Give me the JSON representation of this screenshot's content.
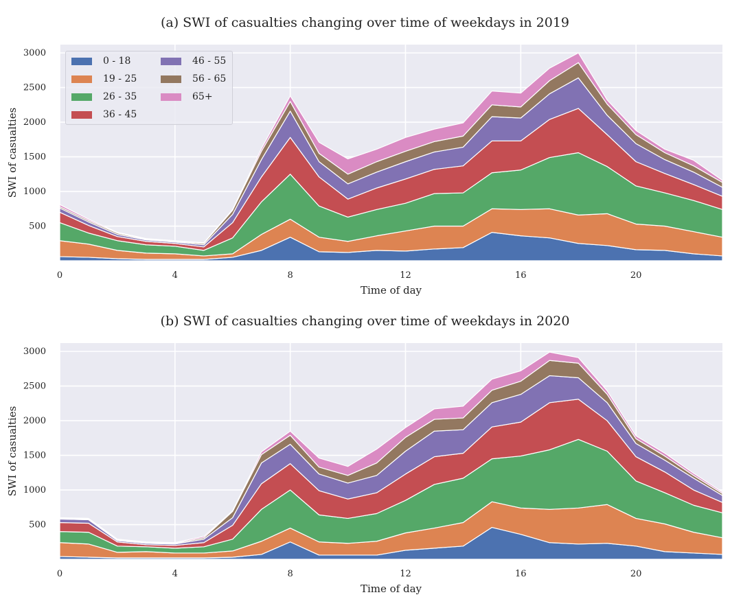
{
  "chart_data": [
    {
      "type": "area",
      "stacked": true,
      "title": "(a) SWI of casualties changing over time of weekdays in 2019",
      "xlabel": "Time of day",
      "ylabel": "SWI of casualties",
      "xlim": [
        0,
        23
      ],
      "ylim": [
        0,
        3120
      ],
      "xticks": [
        0,
        4,
        8,
        12,
        16,
        20
      ],
      "yticks": [
        500,
        1000,
        1500,
        2000,
        2500,
        3000
      ],
      "grid": true,
      "legend": "top-left",
      "x": [
        0,
        1,
        2,
        3,
        4,
        5,
        6,
        7,
        8,
        9,
        10,
        11,
        12,
        13,
        14,
        15,
        16,
        17,
        18,
        19,
        20,
        21,
        22,
        23
      ],
      "series": [
        {
          "name": "0 - 18",
          "color": "#4c72b0",
          "values": [
            60,
            50,
            30,
            20,
            20,
            20,
            50,
            150,
            340,
            130,
            120,
            150,
            140,
            170,
            190,
            410,
            360,
            330,
            250,
            220,
            160,
            150,
            100,
            70
          ]
        },
        {
          "name": "19 - 25",
          "color": "#dd8452",
          "values": [
            230,
            190,
            120,
            90,
            80,
            50,
            50,
            230,
            260,
            210,
            160,
            210,
            290,
            330,
            310,
            340,
            380,
            420,
            410,
            460,
            370,
            350,
            320,
            270
          ]
        },
        {
          "name": "26 - 35",
          "color": "#55a868",
          "values": [
            260,
            160,
            140,
            120,
            110,
            80,
            230,
            470,
            650,
            450,
            350,
            380,
            400,
            470,
            480,
            520,
            570,
            740,
            900,
            680,
            550,
            480,
            450,
            400
          ]
        },
        {
          "name": "36 - 45",
          "color": "#c44e52",
          "values": [
            150,
            110,
            60,
            50,
            40,
            50,
            220,
            360,
            530,
            420,
            260,
            310,
            350,
            350,
            390,
            460,
            420,
            550,
            640,
            460,
            350,
            280,
            230,
            190
          ]
        },
        {
          "name": "46 - 55",
          "color": "#8172b3",
          "values": [
            60,
            50,
            30,
            20,
            20,
            30,
            120,
            250,
            380,
            220,
            220,
            230,
            250,
            250,
            270,
            350,
            330,
            370,
            440,
            280,
            260,
            200,
            180,
            130
          ]
        },
        {
          "name": "56 - 65",
          "color": "#937860",
          "values": [
            20,
            20,
            20,
            10,
            10,
            20,
            60,
            120,
            140,
            120,
            140,
            150,
            150,
            150,
            160,
            170,
            160,
            190,
            220,
            160,
            130,
            100,
            90,
            70
          ]
        },
        {
          "name": "65+",
          "color": "#da8bc3",
          "values": [
            30,
            20,
            10,
            10,
            10,
            10,
            10,
            40,
            80,
            160,
            220,
            180,
            200,
            180,
            190,
            200,
            200,
            180,
            140,
            60,
            60,
            50,
            80,
            30
          ]
        }
      ]
    },
    {
      "type": "area",
      "stacked": true,
      "title": "(b) SWI of casualties changing over time of weekdays in 2020",
      "xlabel": "Time of day",
      "ylabel": "SWI of casualties",
      "xlim": [
        0,
        23
      ],
      "ylim": [
        0,
        3120
      ],
      "xticks": [
        0,
        4,
        8,
        12,
        16,
        20
      ],
      "yticks": [
        500,
        1000,
        1500,
        2000,
        2500,
        3000
      ],
      "grid": true,
      "x": [
        0,
        1,
        2,
        3,
        4,
        5,
        6,
        7,
        8,
        9,
        10,
        11,
        12,
        13,
        14,
        15,
        16,
        17,
        18,
        19,
        20,
        21,
        22,
        23
      ],
      "series": [
        {
          "name": "0 - 18",
          "color": "#4c72b0",
          "values": [
            40,
            30,
            20,
            20,
            20,
            20,
            30,
            70,
            250,
            60,
            60,
            60,
            130,
            160,
            190,
            460,
            360,
            240,
            220,
            230,
            190,
            110,
            90,
            70
          ]
        },
        {
          "name": "19 - 25",
          "color": "#dd8452",
          "values": [
            200,
            190,
            80,
            90,
            70,
            70,
            90,
            190,
            200,
            190,
            170,
            200,
            250,
            290,
            340,
            370,
            380,
            480,
            520,
            560,
            400,
            400,
            300,
            240
          ]
        },
        {
          "name": "26 - 35",
          "color": "#55a868",
          "values": [
            160,
            170,
            90,
            70,
            70,
            90,
            170,
            460,
            550,
            390,
            360,
            400,
            470,
            630,
            640,
            620,
            750,
            860,
            990,
            770,
            540,
            450,
            390,
            360
          ]
        },
        {
          "name": "36 - 45",
          "color": "#c44e52",
          "values": [
            130,
            130,
            60,
            30,
            40,
            60,
            200,
            370,
            380,
            350,
            280,
            300,
            380,
            400,
            360,
            460,
            490,
            680,
            580,
            440,
            350,
            300,
            220,
            150
          ]
        },
        {
          "name": "46 - 55",
          "color": "#8172b3",
          "values": [
            50,
            50,
            20,
            20,
            20,
            50,
            110,
            300,
            280,
            240,
            230,
            250,
            330,
            370,
            340,
            350,
            400,
            390,
            310,
            260,
            190,
            170,
            170,
            100
          ]
        },
        {
          "name": "56 - 65",
          "color": "#937860",
          "values": [
            10,
            10,
            10,
            10,
            10,
            20,
            90,
            120,
            130,
            100,
            110,
            180,
            200,
            170,
            170,
            180,
            190,
            220,
            210,
            120,
            70,
            60,
            40,
            30
          ]
        },
        {
          "name": "65+",
          "color": "#da8bc3",
          "values": [
            10,
            10,
            10,
            10,
            10,
            20,
            10,
            40,
            60,
            130,
            130,
            200,
            140,
            150,
            170,
            160,
            150,
            120,
            80,
            50,
            40,
            40,
            30,
            20
          ]
        }
      ]
    }
  ]
}
